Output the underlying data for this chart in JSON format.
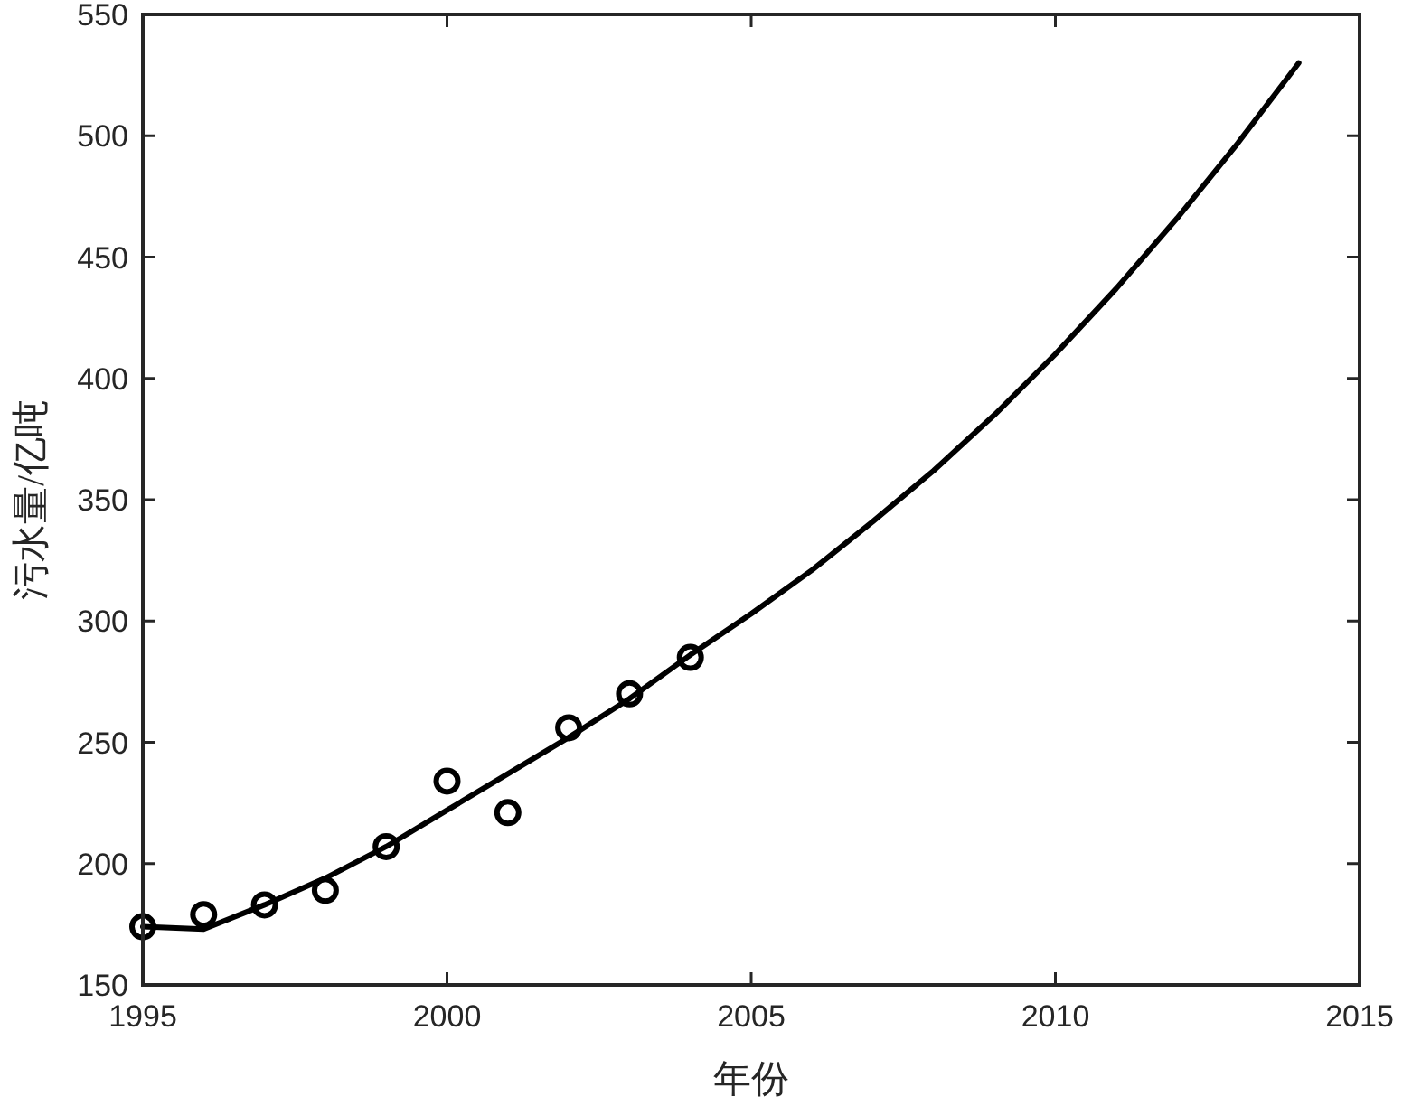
{
  "chart_data": {
    "type": "line",
    "xlabel": "年份",
    "ylabel": "污水量/亿吨",
    "xlim": [
      1995,
      2015
    ],
    "ylim": [
      150,
      550
    ],
    "xticks": [
      1995,
      2000,
      2005,
      2010,
      2015
    ],
    "yticks": [
      150,
      200,
      250,
      300,
      350,
      400,
      450,
      500,
      550
    ],
    "series": [
      {
        "type": "scatter",
        "color": "#000000",
        "marker": "circle",
        "x": [
          1995,
          1996,
          1997,
          1998,
          1999,
          2000,
          2001,
          2002,
          2003,
          2004
        ],
        "values": [
          174,
          179,
          183,
          189,
          207,
          234,
          221,
          256,
          270,
          285
        ]
      },
      {
        "color": "#000000",
        "marker": "none",
        "x": [
          1995,
          1996,
          1997,
          1998,
          1999,
          2000,
          2001,
          2002,
          2003,
          2004,
          2005,
          2006,
          2007,
          2008,
          2009,
          2010,
          2011,
          2012,
          2013,
          2014
        ],
        "values": [
          174,
          173,
          183,
          194,
          207,
          222,
          237,
          252,
          268,
          286,
          303,
          321,
          341,
          362,
          385,
          410,
          437,
          466,
          497,
          530
        ]
      }
    ]
  }
}
